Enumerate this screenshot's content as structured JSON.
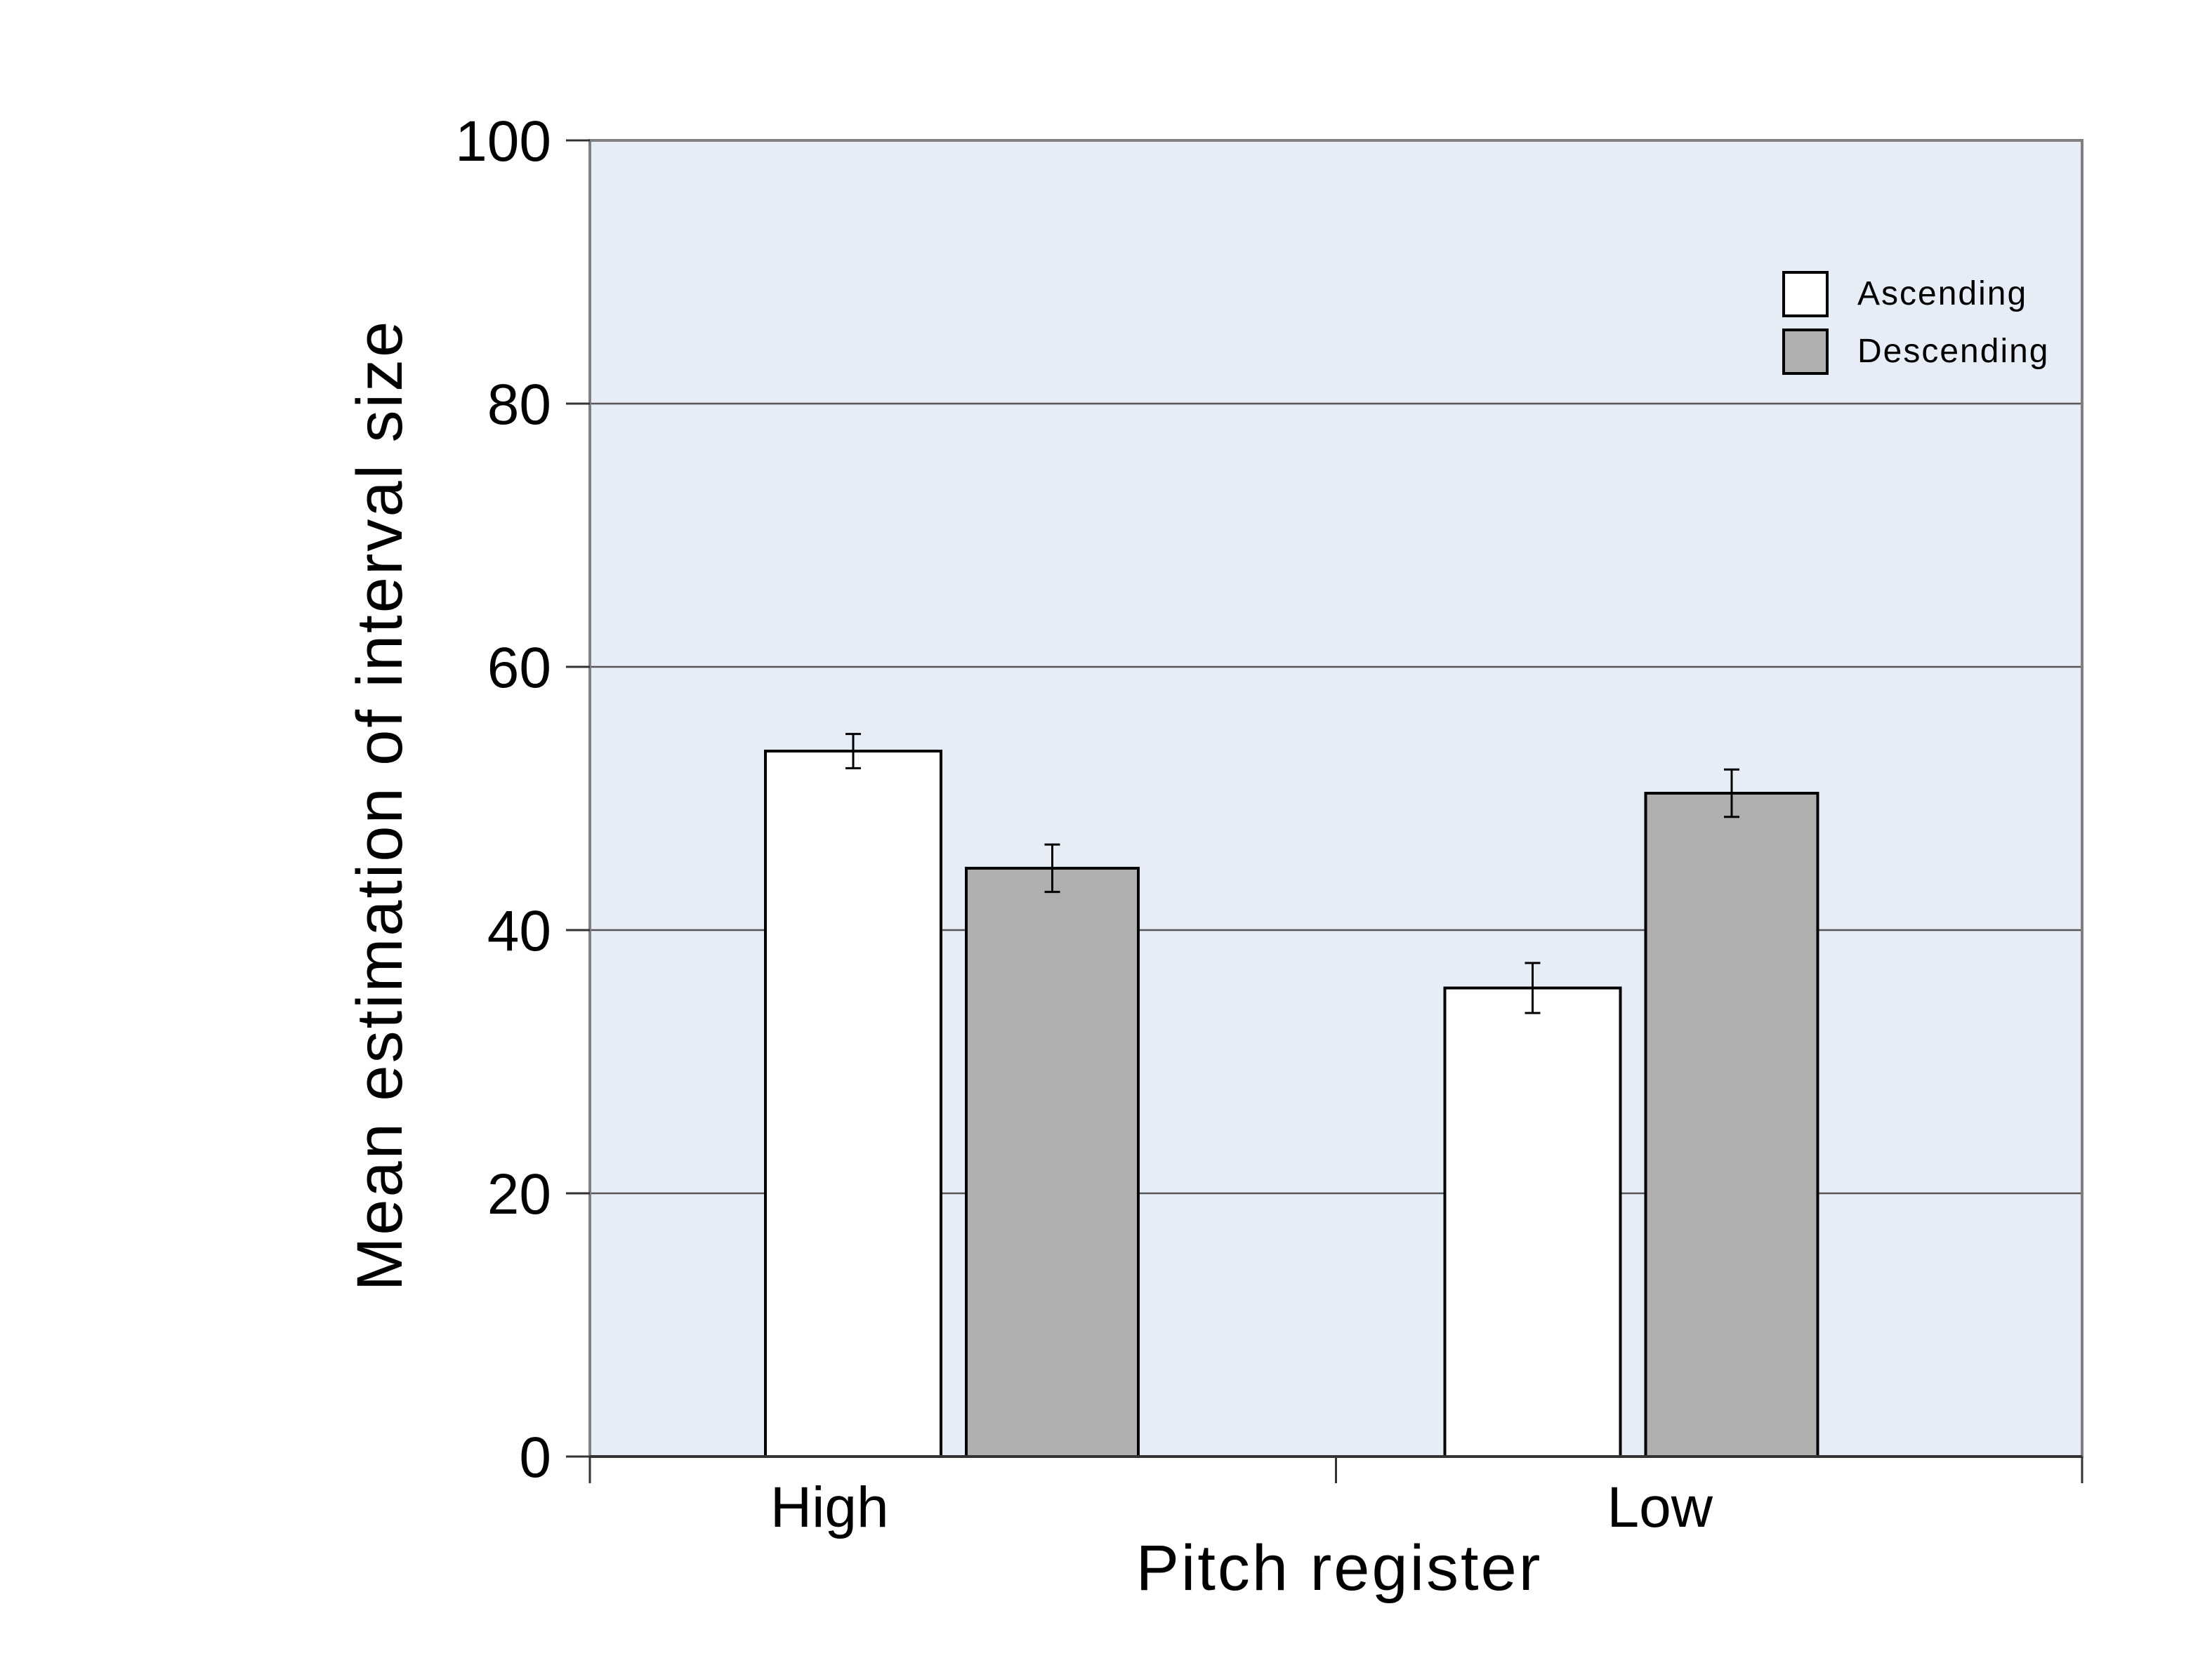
{
  "chart_data": {
    "type": "bar",
    "title": "",
    "xlabel": "Pitch register",
    "ylabel": "Mean estimation of interval size",
    "categories": [
      "High",
      "Low"
    ],
    "series": [
      {
        "name": "Ascending",
        "values": [
          53.6,
          35.6
        ],
        "errors": [
          1.3,
          1.9
        ]
      },
      {
        "name": "Descending",
        "values": [
          44.7,
          50.4
        ],
        "errors": [
          1.8,
          1.8
        ]
      }
    ],
    "ylim": [
      0,
      100
    ],
    "yticks": [
      "0",
      "20",
      "40",
      "60",
      "80",
      "100"
    ],
    "grid": true,
    "legend_position": "top-right",
    "colors": {
      "plot_background": "#e6edf7",
      "Ascending": "#ffffff",
      "Descending": "#b0afb0",
      "gridline": "#555555",
      "frame": "#808080"
    }
  }
}
